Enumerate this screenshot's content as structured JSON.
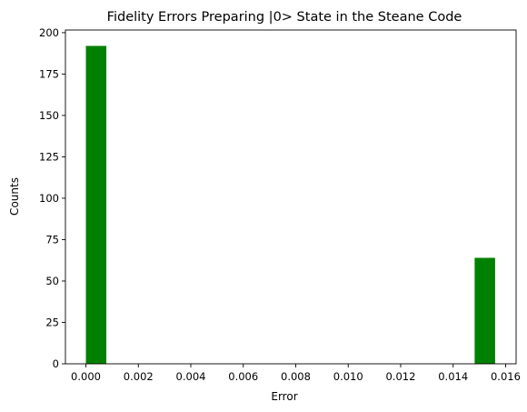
{
  "chart_data": {
    "type": "bar",
    "title": "Fidelity Errors Preparing |0> State in the Steane Code",
    "xlabel": "Error",
    "ylabel": "Counts",
    "bar_color": "#008000",
    "bin_width": 0.00078,
    "bins": [
      {
        "x": 0.0,
        "value": 192
      },
      {
        "x": 0.01482,
        "value": 64
      }
    ],
    "xlim": [
      -0.00078,
      0.0164
    ],
    "ylim": [
      0,
      201.6
    ],
    "xticks": [
      0.0,
      0.002,
      0.004,
      0.006,
      0.008,
      0.01,
      0.012,
      0.014,
      0.016
    ],
    "xtick_labels": [
      "0.000",
      "0.002",
      "0.004",
      "0.006",
      "0.008",
      "0.010",
      "0.012",
      "0.014",
      "0.016"
    ],
    "yticks": [
      0,
      25,
      50,
      75,
      100,
      125,
      150,
      175,
      200
    ],
    "ytick_labels": [
      "0",
      "25",
      "50",
      "75",
      "100",
      "125",
      "150",
      "175",
      "200"
    ],
    "grid": false,
    "legend": "none"
  }
}
